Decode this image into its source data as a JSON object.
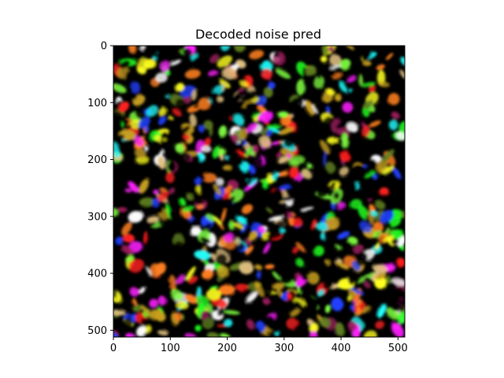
{
  "chart_data": {
    "type": "heatmap",
    "title": "Decoded noise pred",
    "xlabel": "",
    "ylabel": "",
    "image_size": [
      512,
      512
    ],
    "xlim": [
      0,
      512
    ],
    "ylim": [
      512,
      0
    ],
    "y_inverted": true,
    "xticks": [
      0,
      100,
      200,
      300,
      400,
      500
    ],
    "yticks": [
      0,
      100,
      200,
      300,
      400,
      500
    ],
    "xtick_labels": [
      "0",
      "100",
      "200",
      "300",
      "400",
      "500"
    ],
    "ytick_labels": [
      "0",
      "100",
      "200",
      "300",
      "400",
      "500"
    ],
    "grid": false,
    "legend": "none",
    "content": "RGB noise image",
    "palette": [
      "#000000",
      "#ffffff",
      "#ff2020",
      "#20ff20",
      "#2040ff",
      "#ffff20",
      "#ff20ff",
      "#20ffff",
      "#c8a020",
      "#ff8020",
      "#80ff40",
      "#a02060",
      "#608020",
      "#e0c080"
    ]
  }
}
